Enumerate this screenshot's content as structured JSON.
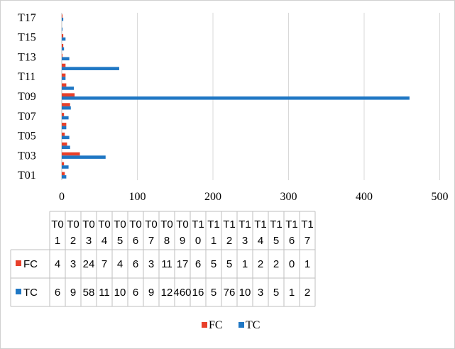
{
  "chart_data": {
    "type": "bar",
    "orientation": "horizontal",
    "categories": [
      "T01",
      "T02",
      "T03",
      "T04",
      "T05",
      "T06",
      "T07",
      "T08",
      "T09",
      "T10",
      "T11",
      "T12",
      "T13",
      "T14",
      "T15",
      "T16",
      "T17"
    ],
    "y_tick_labels": [
      "T01",
      "T03",
      "T05",
      "T07",
      "T09",
      "T11",
      "T13",
      "T15",
      "T17"
    ],
    "x_ticks": [
      0,
      100,
      200,
      300,
      400,
      500
    ],
    "xlim": [
      0,
      500
    ],
    "grid": true,
    "legend_placement": "bottom",
    "colors": {
      "FC": "#e8402a",
      "TC": "#1f77c4"
    },
    "series": [
      {
        "name": "FC",
        "values": [
          4,
          3,
          24,
          7,
          4,
          6,
          3,
          11,
          17,
          6,
          5,
          5,
          1,
          2,
          2,
          0,
          1
        ]
      },
      {
        "name": "TC",
        "values": [
          6,
          9,
          58,
          11,
          10,
          6,
          9,
          12,
          460,
          16,
          5,
          76,
          10,
          3,
          5,
          1,
          2
        ]
      }
    ],
    "table": {
      "header_top": [
        "T0",
        "T0",
        "T0",
        "T0",
        "T0",
        "T0",
        "T0",
        "T0",
        "T0",
        "T1",
        "T1",
        "T1",
        "T1",
        "T1",
        "T1",
        "T1",
        "T1"
      ],
      "header_bottom": [
        "1",
        "2",
        "3",
        "4",
        "5",
        "6",
        "7",
        "8",
        "9",
        "0",
        "1",
        "2",
        "3",
        "4",
        "5",
        "6",
        "7"
      ],
      "rows": [
        {
          "label": "FC",
          "cells": [
            "4",
            "3",
            "24",
            "7",
            "4",
            "6",
            "3",
            "11",
            "17",
            "6",
            "5",
            "5",
            "1",
            "2",
            "2",
            "0",
            "1"
          ]
        },
        {
          "label": "TC",
          "cells": [
            "6",
            "9",
            "58",
            "11",
            "10",
            "6",
            "9",
            "12",
            "460",
            "16",
            "5",
            "76",
            "10",
            "3",
            "5",
            "1",
            "2"
          ]
        }
      ]
    }
  }
}
